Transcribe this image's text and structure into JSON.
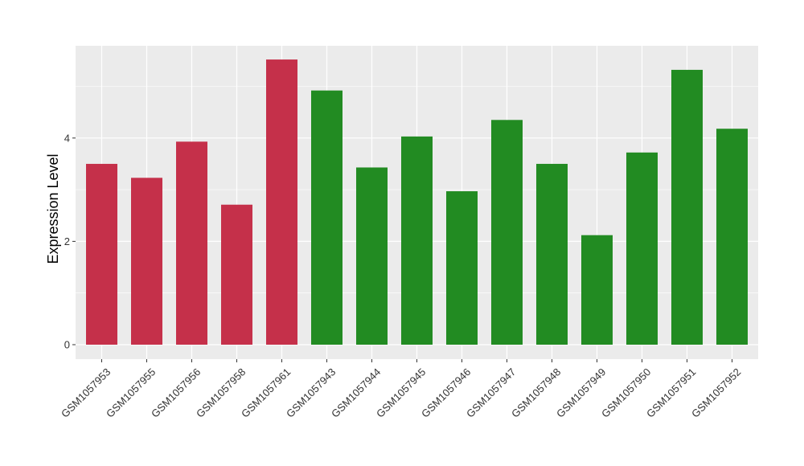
{
  "chart_data": {
    "type": "bar",
    "title": "",
    "xlabel": "",
    "ylabel": "Expression Level",
    "ylim": [
      0,
      5.8
    ],
    "yticks": [
      0,
      2,
      4
    ],
    "ytick_labels": [
      "0",
      "2",
      "4"
    ],
    "grid": true,
    "legend": "none",
    "categories": [
      "GSM1057953",
      "GSM1057955",
      "GSM1057956",
      "GSM1057958",
      "GSM1057961",
      "GSM1057943",
      "GSM1057944",
      "GSM1057945",
      "GSM1057946",
      "GSM1057947",
      "GSM1057948",
      "GSM1057949",
      "GSM1057950",
      "GSM1057951",
      "GSM1057952"
    ],
    "values": [
      3.5,
      3.23,
      3.93,
      2.71,
      5.52,
      4.92,
      3.43,
      4.03,
      2.97,
      4.35,
      3.5,
      2.12,
      3.72,
      5.32,
      4.18
    ],
    "bar_colors": [
      "#c5304a",
      "#c5304a",
      "#c5304a",
      "#c5304a",
      "#c5304a",
      "#228b22",
      "#228b22",
      "#228b22",
      "#228b22",
      "#228b22",
      "#228b22",
      "#228b22",
      "#228b22",
      "#228b22",
      "#228b22"
    ]
  },
  "colors": {
    "panel_background": "#ebebeb",
    "gridline": "#ffffff",
    "red": "#c5304a",
    "green": "#228b22"
  }
}
